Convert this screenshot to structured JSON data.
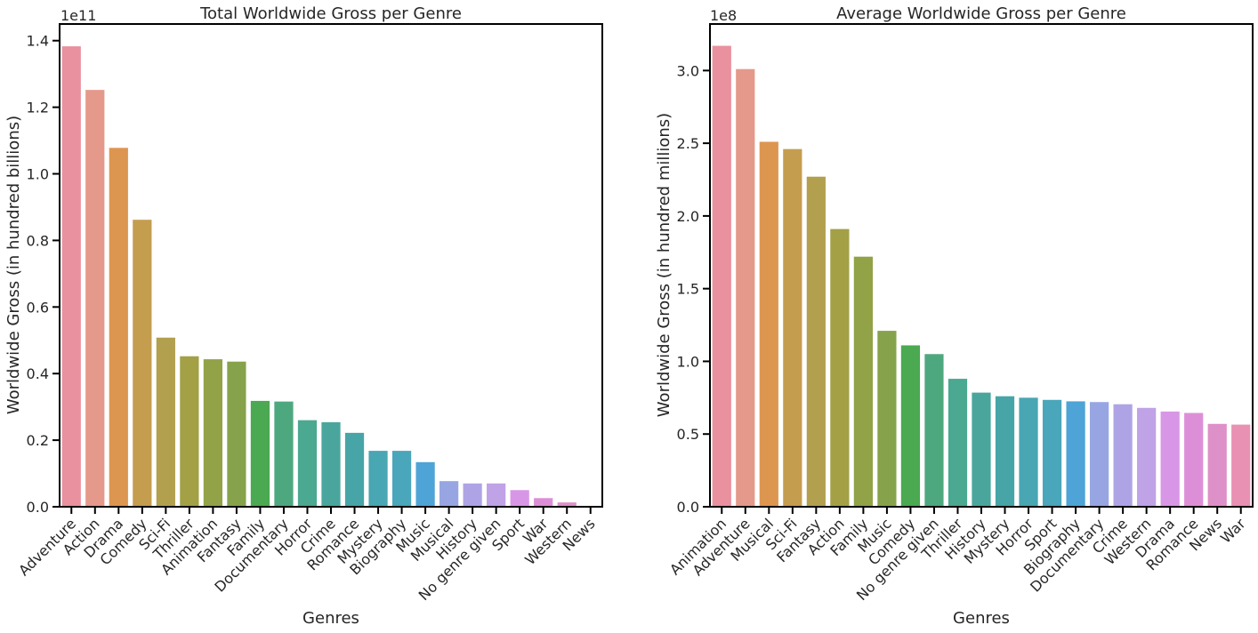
{
  "chart_data": [
    {
      "type": "bar",
      "title": "Total Worldwide Gross per Genre",
      "xlabel": "Genres",
      "ylabel": "Worldwide Gross (in hundred billions)",
      "offset_text": "1e11",
      "scale": 100000000000.0,
      "ylim": [
        0,
        1.45
      ],
      "yticks": [
        "0.0",
        "0.2",
        "0.4",
        "0.6",
        "0.8",
        "1.0",
        "1.2",
        "1.4"
      ],
      "categories": [
        "Adventure",
        "Action",
        "Drama",
        "Comedy",
        "Sci-Fi",
        "Thriller",
        "Animation",
        "Fantasy",
        "Family",
        "Documentary",
        "Horror",
        "Crime",
        "Romance",
        "Mystery",
        "Biography",
        "Music",
        "Musical",
        "History",
        "No genre given",
        "Sport",
        "War",
        "Western",
        "News"
      ],
      "values": [
        1.383,
        1.252,
        1.078,
        0.862,
        0.508,
        0.452,
        0.443,
        0.436,
        0.318,
        0.316,
        0.26,
        0.254,
        0.222,
        0.168,
        0.168,
        0.134,
        0.077,
        0.07,
        0.07,
        0.05,
        0.026,
        0.013,
        0.001
      ],
      "colors": [
        "#e9919e",
        "#e4998a",
        "#dd9650",
        "#c59d4f",
        "#b2a04f",
        "#a3a046",
        "#92a247",
        "#86a34b",
        "#4ba952",
        "#4ea87f",
        "#4ba891",
        "#4aa69d",
        "#47a5a7",
        "#49a6b3",
        "#4aa6ba",
        "#4ea4d6",
        "#97a6e2",
        "#aea4e5",
        "#c0a2e7",
        "#d897e6",
        "#dc8fd7",
        "#de90c8",
        "#e991b3"
      ]
    },
    {
      "type": "bar",
      "title": "Average Worldwide Gross per Genre",
      "xlabel": "Genres",
      "ylabel": "Worldwide Gross (in hundred millions)",
      "offset_text": "1e8",
      "scale": 100000000.0,
      "ylim": [
        0,
        3.32
      ],
      "yticks": [
        "0.0",
        "0.5",
        "1.0",
        "1.5",
        "2.0",
        "2.5",
        "3.0"
      ],
      "categories": [
        "Animation",
        "Adventure",
        "Musical",
        "Sci-Fi",
        "Fantasy",
        "Action",
        "Family",
        "Music",
        "Comedy",
        "No genre given",
        "Thriller",
        "History",
        "Mystery",
        "Horror",
        "Sport",
        "Biography",
        "Documentary",
        "Crime",
        "Western",
        "Drama",
        "Romance",
        "News",
        "War"
      ],
      "values": [
        3.17,
        3.01,
        2.51,
        2.46,
        2.27,
        1.91,
        1.72,
        1.21,
        1.11,
        1.05,
        0.88,
        0.785,
        0.76,
        0.75,
        0.735,
        0.725,
        0.72,
        0.705,
        0.68,
        0.655,
        0.645,
        0.57,
        0.565
      ],
      "colors": [
        "#e9919e",
        "#e4998a",
        "#dd9650",
        "#c59d4f",
        "#b2a04f",
        "#a3a046",
        "#92a247",
        "#86a34b",
        "#4ba952",
        "#4ea87f",
        "#4ba891",
        "#4aa69d",
        "#47a5a7",
        "#49a6b3",
        "#4aa6ba",
        "#4ea4d6",
        "#97a6e2",
        "#aea4e5",
        "#c0a2e7",
        "#d897e6",
        "#dc8fd7",
        "#de90c8",
        "#e991b3"
      ]
    }
  ]
}
